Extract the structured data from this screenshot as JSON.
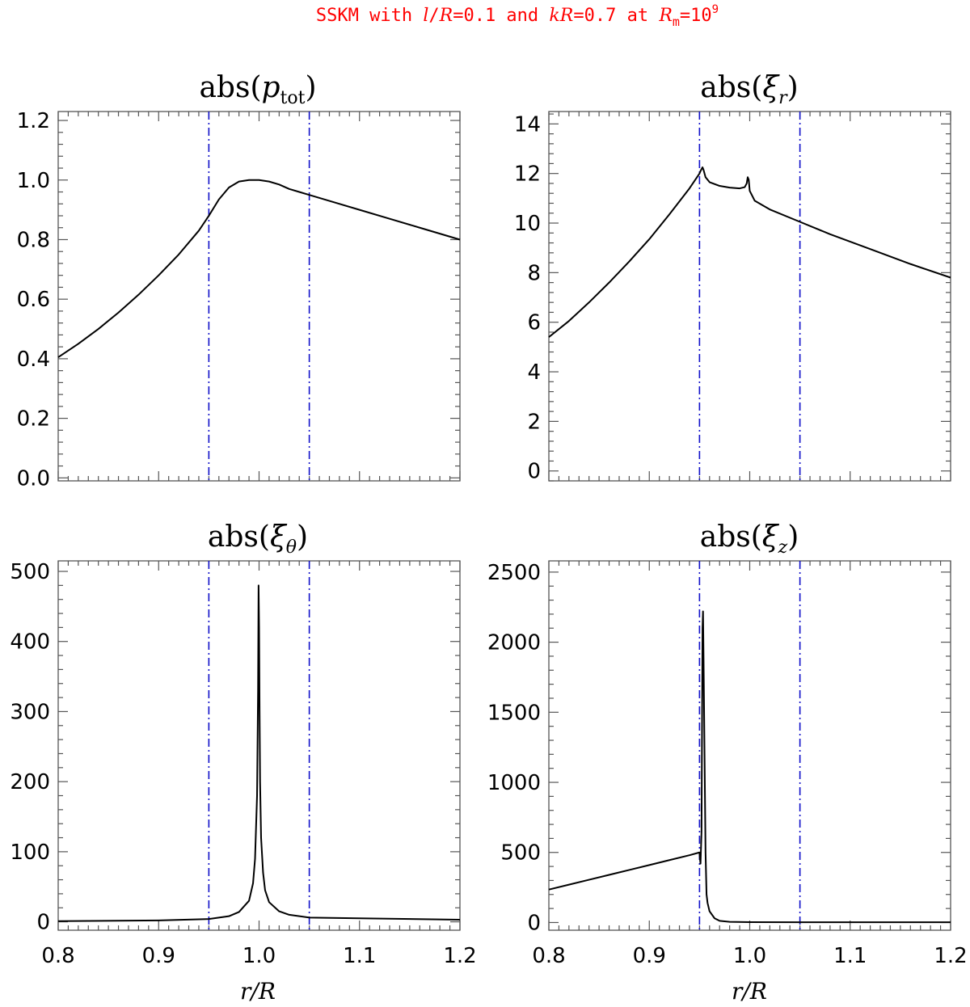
{
  "figure_title": {
    "part1": "SSKM with ",
    "l_symbol": "l",
    "part2": "/",
    "R_symbol": "R",
    "part3": "=0.1 and ",
    "k_symbol": "k",
    "R_symbol2": "R",
    "part4": "=0.7 at ",
    "Rm_symbol": "R",
    "Rm_sub": "m",
    "part5": "=10",
    "exponent": "9"
  },
  "x_axis_label": "r/R",
  "colors": {
    "title": "#ff0000",
    "curve": "#000000",
    "reference_lines": "#1010c8"
  },
  "chart_data": [
    {
      "type": "line",
      "title": "abs(p_tot)",
      "title_parts": {
        "func": "abs(",
        "symbol": "p",
        "subscript": "tot",
        "close": ")"
      },
      "xlim": [
        0.8,
        1.2
      ],
      "ylim": [
        -0.01,
        1.23
      ],
      "xticks": [
        "0.8",
        "0.9",
        "1.0",
        "1.1",
        "1.2"
      ],
      "show_xtick_labels": false,
      "show_xlabel": false,
      "yticks": [
        "0.0",
        "0.2",
        "0.4",
        "0.6",
        "0.8",
        "1.0",
        "1.2"
      ],
      "ytick_values": [
        0.0,
        0.2,
        0.4,
        0.6,
        0.8,
        1.0,
        1.2
      ],
      "vertical_lines_x": [
        0.95,
        1.05
      ],
      "series": [
        {
          "x": [
            0.8,
            0.82,
            0.84,
            0.86,
            0.88,
            0.9,
            0.92,
            0.94,
            0.95,
            0.96,
            0.97,
            0.98,
            0.99,
            1.0,
            1.01,
            1.02,
            1.03,
            1.04,
            1.05,
            1.07,
            1.1,
            1.13,
            1.16,
            1.2
          ],
          "y": [
            0.405,
            0.45,
            0.5,
            0.555,
            0.615,
            0.68,
            0.75,
            0.83,
            0.88,
            0.935,
            0.975,
            0.995,
            1.0,
            1.0,
            0.995,
            0.985,
            0.97,
            0.96,
            0.95,
            0.93,
            0.9,
            0.87,
            0.84,
            0.8
          ]
        }
      ]
    },
    {
      "type": "line",
      "title": "abs(ξ_r)",
      "title_parts": {
        "func": "abs(",
        "symbol": "ξ",
        "subscript": "r",
        "close": ")"
      },
      "xlim": [
        0.8,
        1.2
      ],
      "ylim": [
        -0.4,
        14.5
      ],
      "xticks": [
        "0.8",
        "0.9",
        "1.0",
        "1.1",
        "1.2"
      ],
      "show_xtick_labels": false,
      "show_xlabel": false,
      "yticks": [
        "0",
        "2",
        "4",
        "6",
        "8",
        "10",
        "12",
        "14"
      ],
      "ytick_values": [
        0,
        2,
        4,
        6,
        8,
        10,
        12,
        14
      ],
      "vertical_lines_x": [
        0.95,
        1.05
      ],
      "series": [
        {
          "x": [
            0.8,
            0.82,
            0.84,
            0.86,
            0.88,
            0.9,
            0.92,
            0.94,
            0.95,
            0.951,
            0.953,
            0.954,
            0.956,
            0.96,
            0.97,
            0.98,
            0.99,
            0.995,
            0.997,
            0.998,
            0.999,
            1.0,
            1.005,
            1.02,
            1.05,
            1.08,
            1.12,
            1.16,
            1.2
          ],
          "y": [
            5.4,
            6.05,
            6.8,
            7.6,
            8.45,
            9.35,
            10.35,
            11.4,
            12.0,
            12.1,
            12.25,
            12.15,
            11.85,
            11.65,
            11.5,
            11.43,
            11.4,
            11.45,
            11.6,
            11.85,
            11.75,
            11.3,
            10.9,
            10.55,
            10.05,
            9.55,
            8.95,
            8.35,
            7.8
          ]
        }
      ]
    },
    {
      "type": "line",
      "title": "abs(ξ_θ)",
      "title_parts": {
        "func": "abs(",
        "symbol": "ξ",
        "subscript": "θ",
        "close": ")"
      },
      "xlim": [
        0.8,
        1.2
      ],
      "ylim": [
        -12,
        515
      ],
      "xticks": [
        "0.8",
        "0.9",
        "1.0",
        "1.1",
        "1.2"
      ],
      "show_xtick_labels": true,
      "show_xlabel": true,
      "yticks": [
        "0",
        "100",
        "200",
        "300",
        "400",
        "500"
      ],
      "ytick_values": [
        0,
        100,
        200,
        300,
        400,
        500
      ],
      "vertical_lines_x": [
        0.95,
        1.05
      ],
      "series": [
        {
          "x": [
            0.8,
            0.9,
            0.95,
            0.97,
            0.98,
            0.99,
            0.994,
            0.996,
            0.998,
            0.999,
            0.9995,
            1.0,
            1.0005,
            1.001,
            1.002,
            1.004,
            1.006,
            1.01,
            1.02,
            1.03,
            1.05,
            1.1,
            1.2
          ],
          "y": [
            1,
            2,
            4,
            8,
            14,
            30,
            55,
            90,
            180,
            330,
            480,
            420,
            300,
            200,
            120,
            70,
            45,
            28,
            15,
            10,
            6,
            5,
            3
          ]
        }
      ]
    },
    {
      "type": "line",
      "title": "abs(ξ_z)",
      "title_parts": {
        "func": "abs(",
        "symbol": "ξ",
        "subscript": "z",
        "close": ")"
      },
      "xlim": [
        0.8,
        1.2
      ],
      "ylim": [
        -55,
        2580
      ],
      "xticks": [
        "0.8",
        "0.9",
        "1.0",
        "1.1",
        "1.2"
      ],
      "show_xtick_labels": true,
      "show_xlabel": true,
      "yticks": [
        "0",
        "500",
        "1000",
        "1500",
        "2000",
        "2500"
      ],
      "ytick_values": [
        0,
        500,
        1000,
        1500,
        2000,
        2500
      ],
      "vertical_lines_x": [
        0.95,
        1.05
      ],
      "series": [
        {
          "x": [
            0.8,
            0.82,
            0.84,
            0.86,
            0.88,
            0.9,
            0.92,
            0.94,
            0.95,
            0.9505,
            0.951,
            0.952,
            0.953,
            0.9535,
            0.954,
            0.955,
            0.956,
            0.957,
            0.958,
            0.96,
            0.965,
            0.97,
            0.98,
            1.0,
            1.05,
            1.1,
            1.2
          ],
          "y": [
            235,
            270,
            305,
            340,
            375,
            410,
            445,
            480,
            500,
            450,
            420,
            650,
            2100,
            2220,
            1900,
            1200,
            500,
            200,
            140,
            80,
            30,
            12,
            5,
            3,
            2,
            2,
            2
          ]
        }
      ]
    }
  ]
}
